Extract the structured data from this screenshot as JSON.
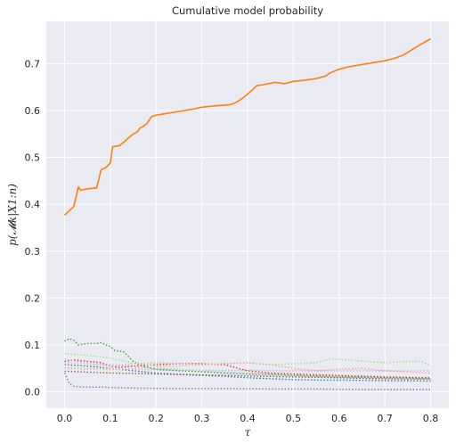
{
  "chart_data": {
    "type": "line",
    "title": "Cumulative model probability",
    "xlabel": "τ",
    "ylabel": "p(𝓜k|X1:n)",
    "xlim": [
      -0.04,
      0.84
    ],
    "ylim": [
      -0.035,
      0.79
    ],
    "xticks": [
      0.0,
      0.1,
      0.2,
      0.3,
      0.4,
      0.5,
      0.6,
      0.7,
      0.8
    ],
    "xtick_labels": [
      "0.0",
      "0.1",
      "0.2",
      "0.3",
      "0.4",
      "0.5",
      "0.6",
      "0.7",
      "0.8"
    ],
    "yticks": [
      0.0,
      0.1,
      0.2,
      0.3,
      0.4,
      0.5,
      0.6,
      0.7
    ],
    "ytick_labels": [
      "0.0",
      "0.1",
      "0.2",
      "0.3",
      "0.4",
      "0.5",
      "0.6",
      "0.7"
    ],
    "grid": true,
    "legend": false,
    "background": "#eaeaf2",
    "series": [
      {
        "style": "solid",
        "color": "#ff7f0e",
        "x": [
          0.0,
          0.02,
          0.03,
          0.035,
          0.05,
          0.07,
          0.08,
          0.09,
          0.1,
          0.105,
          0.12,
          0.13,
          0.14,
          0.15,
          0.16,
          0.165,
          0.17,
          0.18,
          0.19,
          0.2,
          0.22,
          0.25,
          0.28,
          0.3,
          0.33,
          0.36,
          0.37,
          0.38,
          0.39,
          0.4,
          0.41,
          0.42,
          0.44,
          0.46,
          0.47,
          0.48,
          0.5,
          0.52,
          0.55,
          0.57,
          0.58,
          0.6,
          0.62,
          0.65,
          0.68,
          0.7,
          0.72,
          0.74,
          0.76,
          0.78,
          0.8
        ],
        "y": [
          0.377,
          0.395,
          0.437,
          0.43,
          0.433,
          0.435,
          0.474,
          0.478,
          0.488,
          0.523,
          0.525,
          0.533,
          0.542,
          0.55,
          0.555,
          0.563,
          0.565,
          0.572,
          0.587,
          0.59,
          0.593,
          0.598,
          0.603,
          0.607,
          0.61,
          0.612,
          0.615,
          0.62,
          0.627,
          0.635,
          0.643,
          0.653,
          0.656,
          0.66,
          0.659,
          0.657,
          0.662,
          0.664,
          0.668,
          0.673,
          0.68,
          0.688,
          0.693,
          0.698,
          0.703,
          0.706,
          0.711,
          0.718,
          0.73,
          0.742,
          0.753
        ]
      },
      {
        "style": "dotted",
        "color": "#2ca02c",
        "x": [
          0.0,
          0.01,
          0.02,
          0.03,
          0.05,
          0.07,
          0.08,
          0.09,
          0.1,
          0.11,
          0.13,
          0.15,
          0.17,
          0.2,
          0.25,
          0.3,
          0.35,
          0.4,
          0.45,
          0.5,
          0.6,
          0.7,
          0.8
        ],
        "y": [
          0.108,
          0.113,
          0.11,
          0.1,
          0.103,
          0.103,
          0.105,
          0.1,
          0.097,
          0.088,
          0.085,
          0.065,
          0.055,
          0.048,
          0.045,
          0.043,
          0.04,
          0.038,
          0.037,
          0.035,
          0.032,
          0.03,
          0.028
        ]
      },
      {
        "style": "dotted",
        "color": "#d62728",
        "x": [
          0.0,
          0.02,
          0.05,
          0.08,
          0.1,
          0.12,
          0.15,
          0.2,
          0.25,
          0.3,
          0.35,
          0.38,
          0.4,
          0.45,
          0.5,
          0.6,
          0.7,
          0.8
        ],
        "y": [
          0.065,
          0.068,
          0.065,
          0.062,
          0.055,
          0.052,
          0.055,
          0.058,
          0.06,
          0.06,
          0.058,
          0.05,
          0.045,
          0.04,
          0.038,
          0.035,
          0.032,
          0.03
        ]
      },
      {
        "style": "dotted",
        "color": "#1f77b4",
        "x": [
          0.0,
          0.05,
          0.1,
          0.15,
          0.2,
          0.25,
          0.3,
          0.35,
          0.4,
          0.45,
          0.5,
          0.55,
          0.6,
          0.7,
          0.8
        ],
        "y": [
          0.058,
          0.055,
          0.05,
          0.045,
          0.04,
          0.037,
          0.035,
          0.033,
          0.03,
          0.028,
          0.026,
          0.025,
          0.025,
          0.024,
          0.023
        ]
      },
      {
        "style": "dotted",
        "color": "#9467bd",
        "x": [
          0.0,
          0.005,
          0.01,
          0.02,
          0.04,
          0.08,
          0.15,
          0.25,
          0.35,
          0.45,
          0.55,
          0.65,
          0.8
        ],
        "y": [
          0.04,
          0.03,
          0.018,
          0.012,
          0.01,
          0.01,
          0.008,
          0.007,
          0.007,
          0.006,
          0.006,
          0.005,
          0.005
        ]
      },
      {
        "style": "dotted",
        "color": "#98df8a",
        "x": [
          0.0,
          0.05,
          0.1,
          0.15,
          0.2,
          0.25,
          0.3,
          0.35,
          0.4,
          0.45,
          0.5,
          0.55,
          0.58,
          0.62,
          0.66,
          0.7,
          0.75,
          0.78,
          0.8
        ],
        "y": [
          0.082,
          0.078,
          0.072,
          0.062,
          0.055,
          0.055,
          0.058,
          0.06,
          0.062,
          0.058,
          0.06,
          0.062,
          0.07,
          0.068,
          0.065,
          0.062,
          0.065,
          0.065,
          0.055
        ]
      },
      {
        "style": "dotted",
        "color": "#ff9896",
        "x": [
          0.0,
          0.05,
          0.1,
          0.15,
          0.2,
          0.25,
          0.3,
          0.35,
          0.4,
          0.45,
          0.5,
          0.55,
          0.6,
          0.65,
          0.7,
          0.8
        ],
        "y": [
          0.07,
          0.06,
          0.055,
          0.06,
          0.062,
          0.06,
          0.058,
          0.06,
          0.062,
          0.058,
          0.05,
          0.045,
          0.048,
          0.05,
          0.045,
          0.04
        ]
      },
      {
        "style": "dotted",
        "color": "#c5b0d5",
        "x": [
          0.0,
          0.05,
          0.1,
          0.15,
          0.2,
          0.3,
          0.4,
          0.5,
          0.6,
          0.7,
          0.8
        ],
        "y": [
          0.05,
          0.048,
          0.05,
          0.048,
          0.047,
          0.046,
          0.046,
          0.045,
          0.045,
          0.045,
          0.045
        ]
      },
      {
        "style": "dotted",
        "color": "#ffbb78",
        "x": [
          0.0,
          0.05,
          0.1,
          0.15,
          0.2,
          0.25,
          0.3,
          0.35,
          0.4,
          0.5,
          0.6,
          0.7,
          0.8
        ],
        "y": [
          0.052,
          0.05,
          0.047,
          0.05,
          0.052,
          0.048,
          0.045,
          0.042,
          0.04,
          0.035,
          0.03,
          0.028,
          0.025
        ]
      },
      {
        "style": "dotted",
        "color": "#8c564b",
        "x": [
          0.0,
          0.05,
          0.1,
          0.2,
          0.3,
          0.4,
          0.5,
          0.6,
          0.7,
          0.8
        ],
        "y": [
          0.044,
          0.042,
          0.04,
          0.038,
          0.036,
          0.034,
          0.032,
          0.03,
          0.028,
          0.027
        ]
      },
      {
        "style": "dotted",
        "color": "#aec7e8",
        "x": [
          0.0,
          0.05,
          0.1,
          0.2,
          0.3,
          0.4,
          0.5,
          0.6,
          0.7,
          0.8
        ],
        "y": [
          0.062,
          0.06,
          0.058,
          0.05,
          0.045,
          0.04,
          0.035,
          0.033,
          0.03,
          0.028
        ]
      }
    ]
  }
}
